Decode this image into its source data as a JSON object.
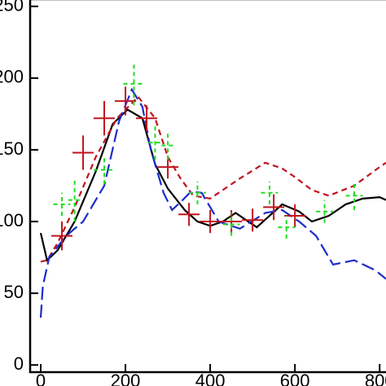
{
  "chart_data": {
    "type": "line",
    "xlim": [
      -25,
      815
    ],
    "ylim": [
      -5,
      255
    ],
    "xticks": [
      0,
      200,
      400,
      600,
      800
    ],
    "yticks": [
      0,
      50,
      100,
      150,
      200,
      250
    ],
    "series": [
      {
        "color": "#000000",
        "dash": "none",
        "x": [
          0,
          15,
          40,
          80,
          130,
          170,
          205,
          240,
          270,
          300,
          340,
          370,
          400,
          430,
          460,
          510,
          570,
          610,
          640,
          680,
          720,
          760,
          800,
          815
        ],
        "values": [
          92,
          73,
          80,
          100,
          135,
          168,
          178,
          172,
          140,
          123,
          108,
          100,
          97,
          100,
          106,
          96,
          112,
          107,
          100,
          104,
          112,
          116,
          117,
          115
        ]
      },
      {
        "color": "#c0141c",
        "dash": "7 5",
        "x": [
          0,
          15,
          40,
          80,
          130,
          180,
          230,
          270,
          300,
          330,
          360,
          400,
          440,
          470,
          530,
          570,
          600,
          640,
          680,
          740,
          800,
          815
        ],
        "values": [
          72,
          73,
          85,
          110,
          145,
          172,
          187,
          172,
          145,
          130,
          118,
          116,
          124,
          130,
          141,
          137,
          131,
          122,
          118,
          125,
          138,
          141
        ]
      },
      {
        "color": "#1c2ccc",
        "dash": "16 6",
        "x": [
          0,
          5,
          20,
          60,
          100,
          150,
          185,
          215,
          240,
          260,
          290,
          310,
          335,
          355,
          380,
          420,
          470,
          530,
          570,
          610,
          650,
          690,
          740,
          790,
          815
        ],
        "values": [
          33,
          55,
          75,
          90,
          100,
          125,
          170,
          192,
          180,
          150,
          120,
          108,
          115,
          121,
          120,
          100,
          95,
          106,
          108,
          100,
          90,
          70,
          73,
          66,
          60
        ]
      }
    ],
    "errors": [
      {
        "color": "#c0141c",
        "x": [
          50,
          100,
          150,
          200,
          250,
          300,
          350,
          400,
          450,
          500,
          550,
          600
        ],
        "values": [
          90,
          148,
          172,
          184,
          172,
          138,
          105,
          100,
          100,
          101,
          110,
          104
        ],
        "xerr": [
          25,
          25,
          25,
          25,
          25,
          25,
          25,
          25,
          25,
          25,
          25,
          25
        ],
        "yerr": [
          10,
          12,
          12,
          10,
          9,
          8,
          8,
          8,
          8,
          8,
          9,
          8
        ]
      },
      {
        "color": "#22dd22",
        "x": [
          50,
          80,
          150,
          220,
          270,
          300,
          370,
          450,
          540,
          580,
          670,
          740
        ],
        "values": [
          112,
          115,
          136,
          196,
          155,
          153,
          120,
          98,
          120,
          96,
          107,
          118
        ],
        "xerr": [
          20,
          15,
          25,
          25,
          15,
          15,
          20,
          20,
          20,
          20,
          20,
          20
        ],
        "yerr": [
          8,
          15,
          10,
          15,
          12,
          10,
          8,
          8,
          8,
          8,
          8,
          10
        ]
      }
    ]
  }
}
